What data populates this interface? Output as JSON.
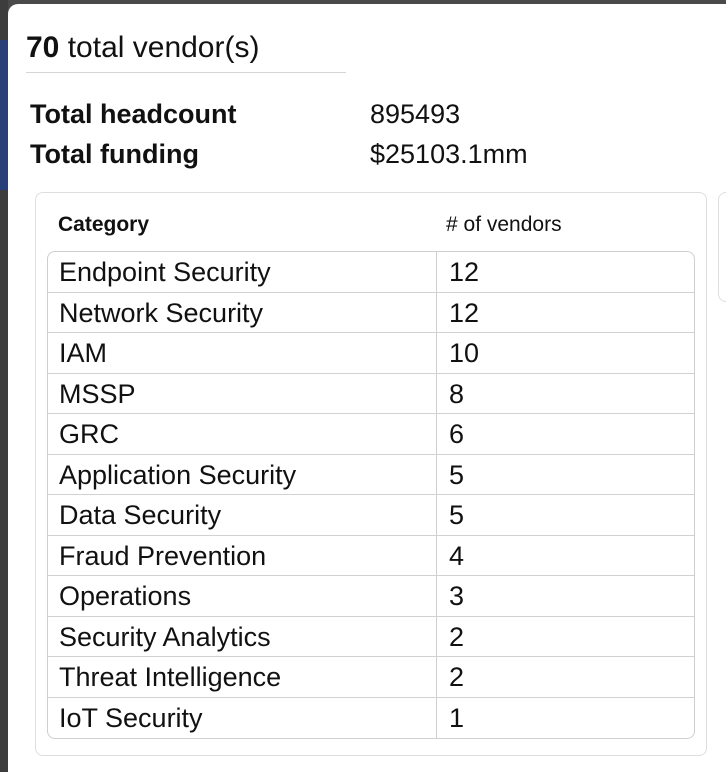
{
  "summary": {
    "vendor_count": "70",
    "vendor_count_suffix": "total vendor(s)"
  },
  "stats": [
    {
      "label": "Total headcount",
      "value": "895493"
    },
    {
      "label": "Total funding",
      "value": "$25103.1mm"
    }
  ],
  "table": {
    "header_category": "Category",
    "header_count": "# of vendors",
    "rows": [
      {
        "category": "Endpoint Security",
        "count": "12"
      },
      {
        "category": "Network Security",
        "count": "12"
      },
      {
        "category": "IAM",
        "count": "10"
      },
      {
        "category": "MSSP",
        "count": "8"
      },
      {
        "category": "GRC",
        "count": "6"
      },
      {
        "category": "Application Security",
        "count": "5"
      },
      {
        "category": "Data Security",
        "count": "5"
      },
      {
        "category": "Fraud Prevention",
        "count": "4"
      },
      {
        "category": "Operations",
        "count": "3"
      },
      {
        "category": "Security Analytics",
        "count": "2"
      },
      {
        "category": "Threat Intelligence",
        "count": "2"
      },
      {
        "category": "IoT Security",
        "count": "1"
      }
    ]
  }
}
